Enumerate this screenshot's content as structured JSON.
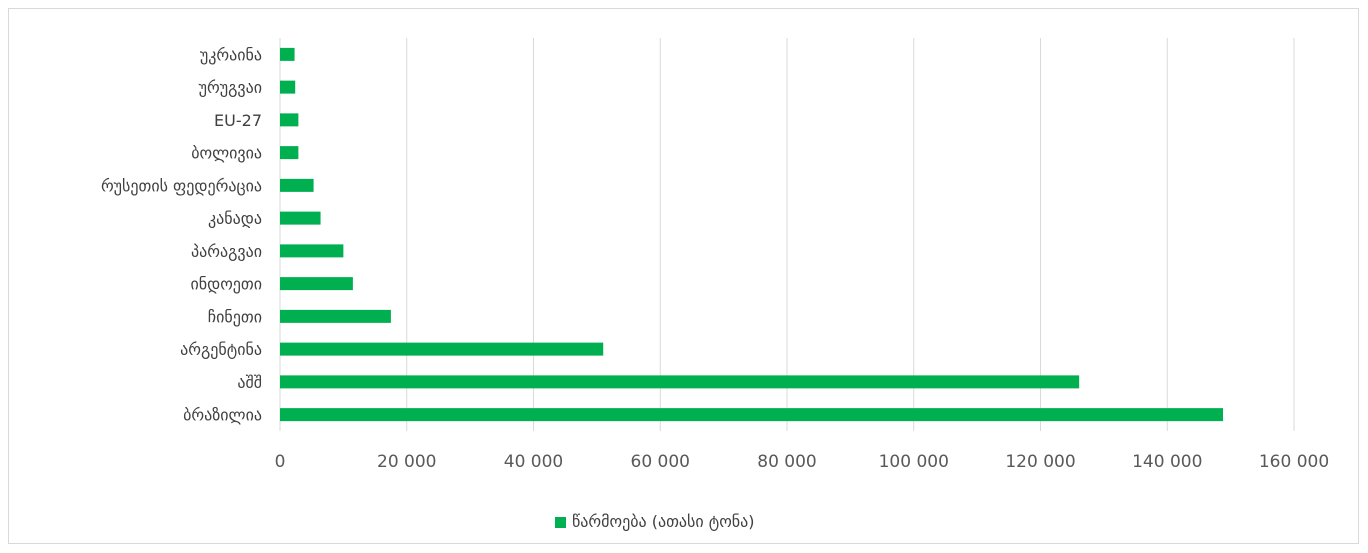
{
  "chart_data": {
    "type": "bar",
    "orientation": "horizontal",
    "categories": [
      "ბრაზილია",
      "აშშ",
      "არგენტინა",
      "ჩინეთი",
      "ინდოეთი",
      "პარაგვაი",
      "კანადა",
      "რუსეთის ფედერაცია",
      "ბოლივია",
      "EU-27",
      "ურუგვაი",
      "უკრაინა"
    ],
    "series": [
      {
        "name": "წარმოება (ათასი ტონა)",
        "color": "#00b050",
        "values": [
          148800,
          126100,
          51000,
          17500,
          11500,
          10000,
          6400,
          5300,
          2900,
          2900,
          2400,
          2300
        ]
      }
    ],
    "x_ticks": [
      "0",
      "20 000",
      "40 000",
      "60 000",
      "80 000",
      "100 000",
      "120 000",
      "140 000",
      "160 000"
    ],
    "xlim": [
      0,
      160000
    ],
    "grid": "vertical",
    "legend_position": "bottom",
    "gridline_color": "#d9d9d9"
  }
}
